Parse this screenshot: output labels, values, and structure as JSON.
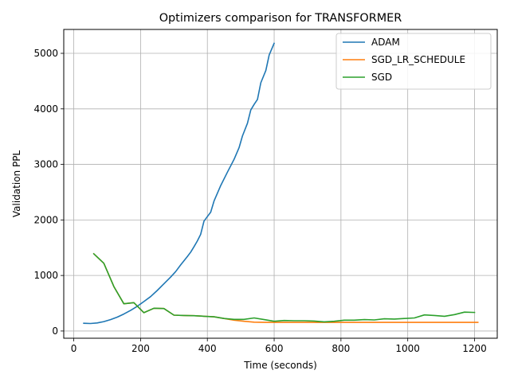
{
  "chart_data": {
    "type": "line",
    "title": "Optimizers comparison for TRANSFORMER",
    "xlabel": "Time (seconds)",
    "ylabel": "Validation PPL",
    "xlim": [
      -30,
      1268
    ],
    "ylim": [
      -130,
      5430
    ],
    "xticks": [
      0,
      200,
      400,
      600,
      800,
      1000,
      1200
    ],
    "yticks": [
      0,
      1000,
      2000,
      3000,
      4000,
      5000
    ],
    "grid": true,
    "legend_position": "top-right",
    "series": [
      {
        "name": "ADAM",
        "color": "#1f77b4",
        "points": [
          [
            30,
            140
          ],
          [
            50,
            135
          ],
          [
            70,
            145
          ],
          [
            90,
            170
          ],
          [
            110,
            205
          ],
          [
            130,
            250
          ],
          [
            150,
            305
          ],
          [
            170,
            370
          ],
          [
            190,
            445
          ],
          [
            210,
            530
          ],
          [
            230,
            620
          ],
          [
            250,
            730
          ],
          [
            270,
            850
          ],
          [
            290,
            970
          ],
          [
            305,
            1070
          ],
          [
            320,
            1190
          ],
          [
            340,
            1340
          ],
          [
            350,
            1420
          ],
          [
            360,
            1520
          ],
          [
            370,
            1620
          ],
          [
            380,
            1740
          ],
          [
            390,
            1980
          ],
          [
            400,
            2060
          ],
          [
            410,
            2140
          ],
          [
            420,
            2340
          ],
          [
            440,
            2620
          ],
          [
            460,
            2860
          ],
          [
            480,
            3090
          ],
          [
            495,
            3300
          ],
          [
            505,
            3510
          ],
          [
            520,
            3740
          ],
          [
            530,
            3980
          ],
          [
            540,
            4080
          ],
          [
            550,
            4170
          ],
          [
            560,
            4470
          ],
          [
            575,
            4690
          ],
          [
            585,
            4970
          ],
          [
            600,
            5180
          ]
        ]
      },
      {
        "name": "SGD_LR_SCHEDULE",
        "color": "#ff7f0e",
        "points": [
          [
            60,
            1390
          ],
          [
            90,
            1220
          ],
          [
            120,
            800
          ],
          [
            150,
            490
          ],
          [
            180,
            510
          ],
          [
            210,
            330
          ],
          [
            240,
            410
          ],
          [
            270,
            405
          ],
          [
            300,
            285
          ],
          [
            330,
            280
          ],
          [
            360,
            275
          ],
          [
            390,
            265
          ],
          [
            420,
            255
          ],
          [
            450,
            225
          ],
          [
            480,
            195
          ],
          [
            510,
            175
          ],
          [
            540,
            160
          ],
          [
            570,
            155
          ],
          [
            600,
            155
          ],
          [
            650,
            155
          ],
          [
            700,
            155
          ],
          [
            800,
            155
          ],
          [
            900,
            155
          ],
          [
            1000,
            155
          ],
          [
            1100,
            155
          ],
          [
            1150,
            155
          ],
          [
            1210,
            155
          ]
        ]
      },
      {
        "name": "SGD",
        "color": "#2ca02c",
        "points": [
          [
            60,
            1390
          ],
          [
            90,
            1220
          ],
          [
            120,
            800
          ],
          [
            150,
            490
          ],
          [
            180,
            510
          ],
          [
            210,
            330
          ],
          [
            240,
            410
          ],
          [
            270,
            405
          ],
          [
            300,
            285
          ],
          [
            330,
            280
          ],
          [
            360,
            275
          ],
          [
            390,
            265
          ],
          [
            420,
            255
          ],
          [
            450,
            225
          ],
          [
            480,
            210
          ],
          [
            510,
            210
          ],
          [
            540,
            235
          ],
          [
            570,
            205
          ],
          [
            600,
            175
          ],
          [
            630,
            190
          ],
          [
            660,
            185
          ],
          [
            690,
            185
          ],
          [
            720,
            180
          ],
          [
            750,
            165
          ],
          [
            780,
            175
          ],
          [
            810,
            195
          ],
          [
            840,
            195
          ],
          [
            870,
            205
          ],
          [
            900,
            200
          ],
          [
            930,
            220
          ],
          [
            960,
            215
          ],
          [
            990,
            225
          ],
          [
            1020,
            235
          ],
          [
            1050,
            290
          ],
          [
            1080,
            280
          ],
          [
            1110,
            265
          ],
          [
            1140,
            295
          ],
          [
            1170,
            340
          ],
          [
            1200,
            335
          ]
        ]
      }
    ]
  }
}
